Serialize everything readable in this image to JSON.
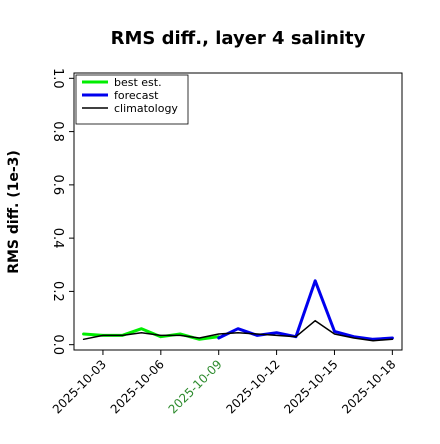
{
  "chart_data": {
    "type": "line",
    "title": "RMS diff., layer 4 salinity",
    "xlabel": "",
    "ylabel": "RMS diff. (1e-3)",
    "ylim": [
      0.0,
      1.0
    ],
    "yticks": [
      "0.0",
      "0.2",
      "0.4",
      "0.6",
      "0.8",
      "1.0"
    ],
    "xticks": [
      {
        "label": "2025-10-03",
        "color": "#000000",
        "highlight": false
      },
      {
        "label": "2025-10-06",
        "color": "#000000",
        "highlight": false
      },
      {
        "label": "2025-10-09",
        "color": "#2e8b2e",
        "highlight": true
      },
      {
        "label": "2025-10-12",
        "color": "#000000",
        "highlight": false
      },
      {
        "label": "2025-10-15",
        "color": "#000000",
        "highlight": false
      },
      {
        "label": "2025-10-18",
        "color": "#000000",
        "highlight": false
      }
    ],
    "x": [
      "2025-10-02",
      "2025-10-03",
      "2025-10-04",
      "2025-10-05",
      "2025-10-06",
      "2025-10-07",
      "2025-10-08",
      "2025-10-09",
      "2025-10-10",
      "2025-10-11",
      "2025-10-12",
      "2025-10-13",
      "2025-10-14",
      "2025-10-15",
      "2025-10-16",
      "2025-10-17",
      "2025-10-18"
    ],
    "series": [
      {
        "name": "best est.",
        "color": "#00ee00",
        "width": 3,
        "x": [
          "2025-10-02",
          "2025-10-03",
          "2025-10-04",
          "2025-10-05",
          "2025-10-06",
          "2025-10-07",
          "2025-10-08",
          "2025-10-09"
        ],
        "values": [
          0.04,
          0.035,
          0.035,
          0.06,
          0.03,
          0.04,
          0.02,
          0.03
        ]
      },
      {
        "name": "forecast",
        "color": "#0000ee",
        "width": 3,
        "x": [
          "2025-10-09",
          "2025-10-10",
          "2025-10-11",
          "2025-10-12",
          "2025-10-13",
          "2025-10-14",
          "2025-10-15",
          "2025-10-16",
          "2025-10-17",
          "2025-10-18"
        ],
        "values": [
          0.025,
          0.06,
          0.035,
          0.045,
          0.03,
          0.24,
          0.05,
          0.03,
          0.02,
          0.025
        ]
      },
      {
        "name": "climatology",
        "color": "#000000",
        "width": 1.5,
        "x": [
          "2025-10-02",
          "2025-10-03",
          "2025-10-04",
          "2025-10-05",
          "2025-10-06",
          "2025-10-07",
          "2025-10-08",
          "2025-10-09",
          "2025-10-10",
          "2025-10-11",
          "2025-10-12",
          "2025-10-13",
          "2025-10-14",
          "2025-10-15",
          "2025-10-16",
          "2025-10-17",
          "2025-10-18"
        ],
        "values": [
          0.02,
          0.035,
          0.035,
          0.045,
          0.035,
          0.035,
          0.025,
          0.04,
          0.045,
          0.04,
          0.035,
          0.03,
          0.09,
          0.04,
          0.025,
          0.015,
          0.02
        ]
      }
    ],
    "legend": {
      "placement": "upper-left",
      "entries": [
        "best est.",
        "forecast",
        "climatology"
      ]
    },
    "grid": false
  }
}
